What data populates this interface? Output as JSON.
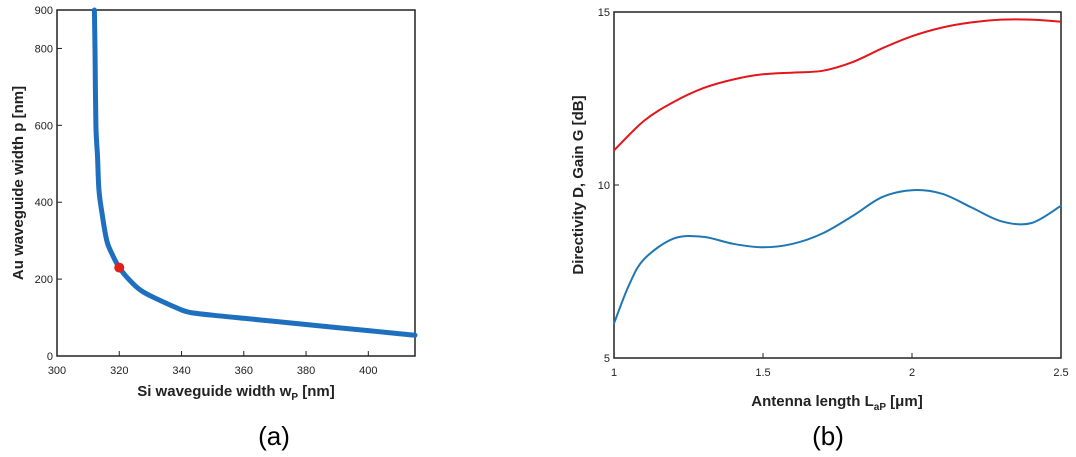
{
  "panel_labels": [
    "(a)",
    "(b)"
  ],
  "chart_data": [
    {
      "type": "line",
      "xlabel": "Si waveguide width w",
      "xlabel_sub": "P",
      "xlabel_unit": " [nm]",
      "ylabel": "Au waveguide width p [nm]",
      "xlim": [
        300,
        415
      ],
      "ylim": [
        0,
        900
      ],
      "xticks": [
        300,
        320,
        340,
        360,
        380,
        400
      ],
      "yticks": [
        0,
        200,
        400,
        600,
        800,
        900
      ],
      "series": [
        {
          "color": "#1f6fbf",
          "x": [
            312.0,
            312.2,
            312.5,
            313.0,
            313.5,
            314.5,
            316.0,
            318.0,
            320.0,
            323.0,
            327.0,
            333.0,
            340.0,
            343.0,
            350.0,
            360.0,
            370.0,
            380.0,
            390.0,
            400.0,
            410.0,
            415.0
          ],
          "y": [
            900,
            800,
            600,
            520,
            430,
            370,
            300,
            260,
            230,
            200,
            170,
            145,
            120,
            113,
            106,
            98,
            90,
            82,
            74,
            66,
            58,
            54
          ]
        }
      ],
      "markers": [
        {
          "x": 320,
          "y": 230,
          "color": "#e0201b"
        }
      ]
    },
    {
      "type": "line",
      "xlabel": "Antenna length L",
      "xlabel_sub": "aP",
      "xlabel_unit": " [μm]",
      "ylabel": "Directivity D, Gain G [dB]",
      "xlim": [
        1,
        2.5
      ],
      "ylim": [
        5,
        15
      ],
      "xticks": [
        "1",
        "1.5",
        "2",
        "2.5"
      ],
      "yticks": [
        "5",
        "10",
        "15"
      ],
      "series": [
        {
          "color": "#e3161b",
          "x": [
            1.0,
            1.1,
            1.2,
            1.3,
            1.4,
            1.5,
            1.6,
            1.7,
            1.8,
            1.9,
            2.0,
            2.1,
            2.2,
            2.3,
            2.4,
            2.5
          ],
          "y": [
            11.0,
            11.85,
            12.4,
            12.8,
            13.05,
            13.2,
            13.25,
            13.3,
            13.55,
            13.95,
            14.3,
            14.55,
            14.7,
            14.78,
            14.78,
            14.72
          ]
        },
        {
          "color": "#1f77b4",
          "x": [
            1.0,
            1.05,
            1.1,
            1.2,
            1.3,
            1.4,
            1.5,
            1.6,
            1.7,
            1.8,
            1.9,
            2.0,
            2.1,
            2.2,
            2.3,
            2.4,
            2.5
          ],
          "y": [
            6.0,
            7.1,
            7.85,
            8.45,
            8.5,
            8.3,
            8.2,
            8.3,
            8.6,
            9.1,
            9.65,
            9.85,
            9.75,
            9.35,
            8.95,
            8.9,
            9.4
          ]
        }
      ]
    }
  ]
}
